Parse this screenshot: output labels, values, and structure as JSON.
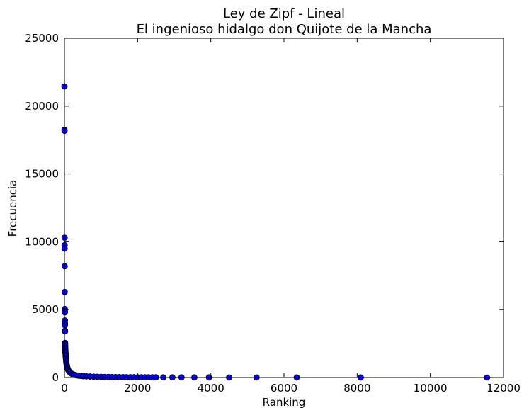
{
  "chart_data": {
    "type": "scatter",
    "title": "Ley de Zipf - Lineal",
    "subtitle": "El ingenioso hidalgo don Quijote de la Mancha",
    "xlabel": "Ranking",
    "ylabel": "Frecuencia",
    "xlim": [
      0,
      12000
    ],
    "ylim": [
      0,
      25000
    ],
    "xticks": [
      "0",
      "2000",
      "4000",
      "6000",
      "8000",
      "10000",
      "12000"
    ],
    "yticks": [
      "0",
      "5000",
      "10000",
      "15000",
      "20000",
      "25000"
    ],
    "grid": false,
    "marker_color": "#0000ff",
    "series": [
      {
        "points": [
          [
            1,
            21450
          ],
          [
            2,
            18250
          ],
          [
            3,
            18180
          ],
          [
            4,
            10300
          ],
          [
            5,
            9750
          ],
          [
            6,
            9500
          ],
          [
            7,
            8200
          ],
          [
            8,
            6300
          ],
          [
            9,
            5050
          ],
          [
            10,
            4900
          ],
          [
            11,
            4800
          ],
          [
            12,
            4200
          ],
          [
            13,
            4000
          ],
          [
            14,
            3850
          ],
          [
            15,
            3450
          ],
          [
            16,
            3400
          ],
          [
            17,
            2550
          ],
          [
            18,
            2450
          ],
          [
            19,
            2350
          ],
          [
            20,
            2250
          ],
          [
            22,
            2150
          ],
          [
            24,
            2050
          ],
          [
            26,
            1950
          ],
          [
            28,
            1850
          ],
          [
            30,
            1750
          ],
          [
            33,
            1650
          ],
          [
            36,
            1550
          ],
          [
            39,
            1450
          ],
          [
            42,
            1350
          ],
          [
            46,
            1250
          ],
          [
            50,
            1150
          ],
          [
            55,
            1050
          ],
          [
            60,
            950
          ],
          [
            66,
            880
          ],
          [
            72,
            800
          ],
          [
            80,
            720
          ],
          [
            90,
            640
          ],
          [
            100,
            570
          ],
          [
            115,
            500
          ],
          [
            130,
            440
          ],
          [
            150,
            380
          ],
          [
            170,
            330
          ],
          [
            200,
            280
          ],
          [
            230,
            240
          ],
          [
            270,
            200
          ],
          [
            320,
            170
          ],
          [
            380,
            140
          ],
          [
            450,
            120
          ],
          [
            520,
            100
          ],
          [
            600,
            88
          ],
          [
            700,
            75
          ],
          [
            800,
            65
          ],
          [
            900,
            58
          ],
          [
            1000,
            52
          ],
          [
            1100,
            47
          ],
          [
            1200,
            42
          ],
          [
            1300,
            38
          ],
          [
            1400,
            35
          ],
          [
            1500,
            32
          ],
          [
            1600,
            29
          ],
          [
            1700,
            27
          ],
          [
            1800,
            25
          ],
          [
            1900,
            23
          ],
          [
            2000,
            21
          ],
          [
            2100,
            19
          ],
          [
            2200,
            18
          ],
          [
            2300,
            17
          ],
          [
            2400,
            16
          ],
          [
            2500,
            15
          ],
          [
            2700,
            14
          ],
          [
            2950,
            13
          ],
          [
            3200,
            12
          ],
          [
            3550,
            10
          ],
          [
            3950,
            9
          ],
          [
            4500,
            7
          ],
          [
            5250,
            5
          ],
          [
            6350,
            3
          ],
          [
            8100,
            2
          ],
          [
            11550,
            1
          ]
        ]
      }
    ]
  }
}
